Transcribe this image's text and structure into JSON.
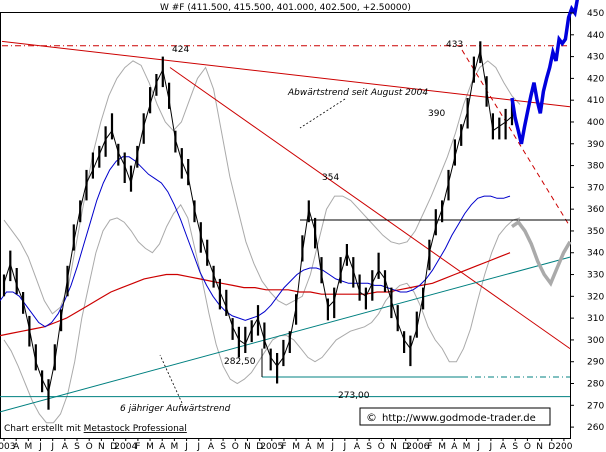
{
  "header": {
    "title": "W #F (411.500, 415.500, 401.000, 402.500, +2.50000)"
  },
  "footer": {
    "credit_prefix": "Chart erstellt mit ",
    "credit_link": "Metastock Professional",
    "copyright_symbol": "©",
    "url": "http://www.godmode-trader.de"
  },
  "chart_data": {
    "type": "line",
    "title": "W #F (411.500, 415.500, 401.000, 402.500, +2.50000)",
    "ylim": [
      255,
      450
    ],
    "y_ticks": [
      260,
      270,
      280,
      290,
      300,
      310,
      320,
      330,
      340,
      350,
      360,
      370,
      380,
      390,
      400,
      410,
      420,
      430,
      440,
      450
    ],
    "x_labels": [
      "2003",
      "A",
      "M",
      "J",
      "J",
      "A",
      "S",
      "O",
      "N",
      "D",
      "2004",
      "F",
      "M",
      "A",
      "M",
      "J",
      "J",
      "A",
      "S",
      "O",
      "N",
      "D",
      "2005",
      "F",
      "M",
      "A",
      "M",
      "J",
      "J",
      "A",
      "S",
      "O",
      "N",
      "D",
      "2006",
      "F",
      "M",
      "A",
      "M",
      "J",
      "J",
      "A",
      "S",
      "O",
      "N",
      "D",
      "200"
    ],
    "series": [
      {
        "values": [
          326,
          335,
          325,
          318,
          305,
          290,
          282,
          276,
          290,
          310,
          328,
          345,
          360,
          372,
          378,
          385,
          392,
          396,
          386,
          380,
          372,
          385,
          398,
          408,
          418,
          424,
          410,
          392,
          382,
          375,
          360,
          348,
          338,
          330,
          322,
          315,
          306,
          300,
          298,
          305,
          310,
          300,
          292,
          288,
          292,
          300,
          315,
          340,
          360,
          350,
          330,
          315,
          318,
          330,
          340,
          332,
          322,
          320,
          326,
          332,
          328,
          318,
          308,
          300,
          296,
          305,
          320,
          340,
          352,
          360,
          372,
          384,
          395,
          405,
          422,
          433,
          415,
          396,
          398,
          400,
          402.5
        ]
      },
      {
        "values": [
          318,
          322,
          322,
          320,
          316,
          312,
          308,
          306,
          308,
          312,
          318,
          325,
          334,
          344,
          354,
          364,
          372,
          378,
          382,
          384,
          384,
          382,
          379,
          376,
          374,
          372,
          368,
          362,
          355,
          347,
          339,
          331,
          325,
          320,
          316,
          313,
          311,
          310,
          309,
          310,
          311,
          313,
          316,
          320,
          324,
          327,
          330,
          332,
          333,
          333,
          332,
          330,
          328,
          327,
          326,
          326,
          326,
          326,
          325,
          325,
          324,
          323,
          322,
          322,
          323,
          325,
          328,
          332,
          337,
          342,
          348,
          353,
          358,
          362,
          365,
          366,
          366,
          365,
          365,
          366
        ]
      },
      {
        "values": [
          302,
          303,
          304,
          305,
          306,
          308,
          310,
          313,
          316,
          319,
          322,
          324,
          326,
          328,
          329,
          330,
          330,
          329,
          328,
          327,
          326,
          325,
          324,
          324,
          323,
          323,
          323,
          322,
          322,
          321,
          321,
          321,
          321,
          321,
          322,
          322,
          323,
          324,
          325,
          326,
          328,
          330,
          332,
          334,
          336,
          338,
          340
        ]
      },
      {
        "values": [
          355,
          350,
          345,
          338,
          328,
          318,
          312,
          315,
          325,
          345,
          365,
          385,
          400,
          412,
          420,
          425,
          428,
          426,
          418,
          408,
          400,
          396,
          400,
          410,
          420,
          425,
          415,
          395,
          375,
          360,
          345,
          335,
          327,
          322,
          318,
          316,
          318,
          320,
          330,
          345,
          360,
          366,
          366,
          364,
          360,
          356,
          352,
          348,
          345,
          344,
          345,
          350,
          358,
          366,
          375,
          384,
          395,
          408,
          418,
          425,
          428,
          425,
          418,
          412,
          408
        ]
      },
      {
        "values": [
          300,
          295,
          288,
          280,
          272,
          266,
          262,
          262,
          266,
          275,
          290,
          310,
          325,
          340,
          350,
          355,
          356,
          354,
          350,
          345,
          342,
          340,
          344,
          352,
          358,
          362,
          356,
          342,
          328,
          312,
          298,
          288,
          282,
          280,
          282,
          285,
          290,
          295,
          300,
          302,
          302,
          300,
          296,
          292,
          290,
          292,
          296,
          300,
          302,
          304,
          305,
          306,
          308,
          312,
          318,
          322,
          325,
          326,
          322,
          315,
          306,
          300,
          296,
          290,
          290,
          296,
          305,
          318,
          330,
          340,
          348,
          352,
          355,
          356
        ]
      },
      {
        "values": [
          411,
          402,
          396,
          390,
          398,
          405,
          412,
          418,
          410,
          404,
          414,
          420,
          425,
          432,
          428,
          438,
          436,
          438,
          448,
          452,
          450,
          458
        ]
      },
      {
        "values": [
          352,
          354,
          350,
          344,
          336,
          330,
          326,
          333,
          340,
          345
        ]
      }
    ],
    "annotations": [
      {
        "label": "424",
        "value": 424
      },
      {
        "label": "433",
        "value": 433
      },
      {
        "label": "390",
        "value": 390
      },
      {
        "label": "354",
        "value": 354
      },
      {
        "label": "282,50",
        "value": 282.5
      },
      {
        "label": "273,00",
        "value": 273
      },
      {
        "label": "Abwärtstrend seit August 2004"
      },
      {
        "label": "6 jähriger Aufwärtstrend"
      }
    ]
  }
}
